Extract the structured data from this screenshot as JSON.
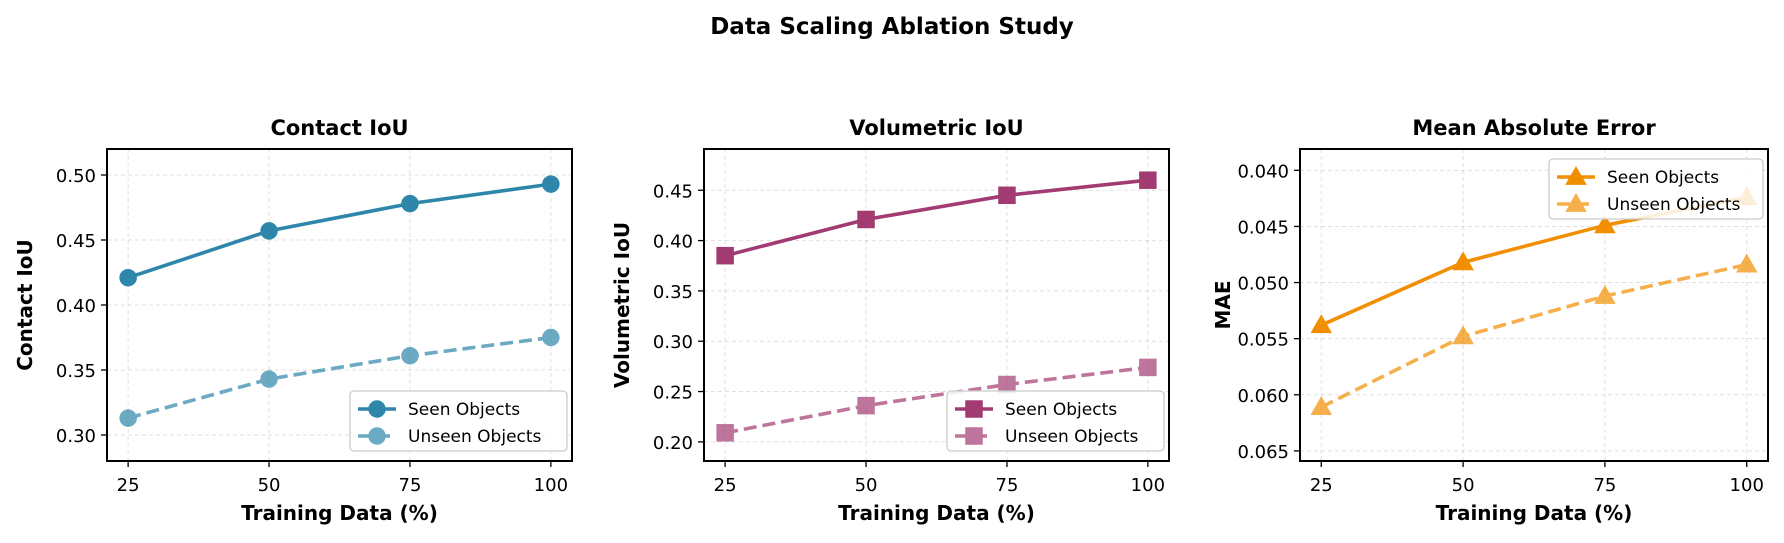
{
  "chart_data": {
    "title": "Data Scaling Ablation Study",
    "panels": [
      {
        "type": "line",
        "title": "Contact IoU",
        "xlabel": "Training Data (%)",
        "ylabel": "Contact IoU",
        "x": [
          25,
          50,
          75,
          100
        ],
        "xticks": [
          "25",
          "50",
          "75",
          "100"
        ],
        "xlim": [
          21.25,
          103.75
        ],
        "ylim": [
          0.28,
          0.52
        ],
        "yinverted": false,
        "yticks": [
          0.3,
          0.35,
          0.4,
          0.45,
          0.5
        ],
        "ytick_labels": [
          "0.30",
          "0.35",
          "0.40",
          "0.45",
          "0.50"
        ],
        "grid": true,
        "legend_position": "lower-right",
        "marker": "circle",
        "color": "#2E86AB",
        "series": [
          {
            "name": "Seen Objects",
            "style": "solid",
            "alpha": 1.0,
            "values": [
              0.421,
              0.457,
              0.478,
              0.493
            ]
          },
          {
            "name": "Unseen Objects",
            "style": "dashed",
            "alpha": 0.7,
            "values": [
              0.313,
              0.343,
              0.361,
              0.375
            ]
          }
        ]
      },
      {
        "type": "line",
        "title": "Volumetric IoU",
        "xlabel": "Training Data (%)",
        "ylabel": "Volumetric IoU",
        "x": [
          25,
          50,
          75,
          100
        ],
        "xticks": [
          "25",
          "50",
          "75",
          "100"
        ],
        "xlim": [
          21.25,
          103.75
        ],
        "ylim": [
          0.181,
          0.491
        ],
        "yinverted": false,
        "yticks": [
          0.2,
          0.25,
          0.3,
          0.35,
          0.4,
          0.45
        ],
        "ytick_labels": [
          "0.20",
          "0.25",
          "0.30",
          "0.35",
          "0.40",
          "0.45"
        ],
        "grid": true,
        "legend_position": "lower-right",
        "marker": "square",
        "color": "#A23B72",
        "series": [
          {
            "name": "Seen Objects",
            "style": "solid",
            "alpha": 1.0,
            "values": [
              0.385,
              0.421,
              0.445,
              0.46
            ]
          },
          {
            "name": "Unseen Objects",
            "style": "dashed",
            "alpha": 0.7,
            "values": [
              0.209,
              0.236,
              0.257,
              0.274
            ]
          }
        ]
      },
      {
        "type": "line",
        "title": "Mean Absolute Error",
        "xlabel": "Training Data (%)",
        "ylabel": "MAE",
        "x": [
          25,
          50,
          75,
          100
        ],
        "xticks": [
          "25",
          "50",
          "75",
          "100"
        ],
        "xlim": [
          21.25,
          103.75
        ],
        "ylim": [
          0.0381,
          0.0659
        ],
        "yinverted": true,
        "yticks": [
          0.04,
          0.045,
          0.05,
          0.055,
          0.06,
          0.065
        ],
        "ytick_labels": [
          "0.040",
          "0.045",
          "0.050",
          "0.055",
          "0.060",
          "0.065"
        ],
        "grid": true,
        "legend_position": "upper-right",
        "marker": "triangle",
        "color": "#F18F01",
        "series": [
          {
            "name": "Seen Objects",
            "style": "solid",
            "alpha": 1.0,
            "values": [
              0.0538,
              0.0482,
              0.0449,
              0.0424
            ]
          },
          {
            "name": "Unseen Objects",
            "style": "dashed",
            "alpha": 0.7,
            "values": [
              0.0611,
              0.0548,
              0.0512,
              0.0484
            ]
          }
        ]
      }
    ]
  }
}
